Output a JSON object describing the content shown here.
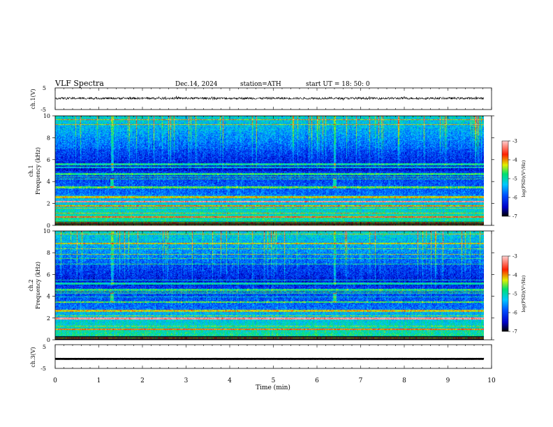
{
  "header": {
    "title": "VLF  Spectra",
    "date": "Dec.14, 2024",
    "station": "station=ATH",
    "start": "start  UT  =    18: 50: 0"
  },
  "chart_data": [
    {
      "type": "line",
      "ylabel": "ch.1(V)",
      "ylim": [
        -5,
        5
      ],
      "ytick_labels": [
        "5",
        "-5"
      ],
      "baseline": 0.2,
      "amplitude": 0.4
    },
    {
      "type": "heatmap",
      "ylabel_channel": "ch.1",
      "ylabel": "Frequency (kHz)",
      "ylim": [
        0,
        10
      ],
      "ytick_labels": [
        "0",
        "2",
        "4",
        "6",
        "8",
        "10"
      ],
      "colorbar": {
        "label": "log(PSD)(V²/Hz)",
        "range": [
          -7,
          -3
        ],
        "tick_labels": [
          "-3",
          "-4",
          "-5",
          "-6",
          "-7"
        ]
      },
      "tones_khz": [
        2.2,
        1.8,
        2.6,
        3.5,
        4.7,
        5.6,
        0.8
      ],
      "bursts_min": [
        1.3,
        6.4
      ]
    },
    {
      "type": "heatmap",
      "ylabel_channel": "ch.2",
      "ylabel": "Frequency (kHz)",
      "ylim": [
        0,
        10
      ],
      "ytick_labels": [
        "0",
        "2",
        "4",
        "6",
        "8",
        "10"
      ],
      "colorbar": {
        "label": "log(PSD)(V²/Hz)",
        "range": [
          -7,
          -3
        ],
        "tick_labels": [
          "-3",
          "-4",
          "-5",
          "-6",
          "-7"
        ]
      },
      "tones_khz": [
        2.0,
        3.5,
        4.6,
        5.2,
        2.7,
        1.0
      ],
      "bursts_min": [
        1.3,
        6.4
      ]
    },
    {
      "type": "line",
      "ylabel": "ch.3(V)",
      "ylim": [
        -5,
        5
      ],
      "ytick_labels": [
        "5",
        "-5"
      ],
      "baseline": -1.0,
      "amplitude": 0.05
    }
  ],
  "xaxis": {
    "label": "Time  (min)",
    "range": [
      0,
      10
    ],
    "tick_labels": [
      "0",
      "1",
      "2",
      "3",
      "4",
      "5",
      "6",
      "7",
      "8",
      "9",
      "10"
    ]
  },
  "colors": {
    "scale": [
      "#000000",
      "#0000c8",
      "#0050ff",
      "#00c8ff",
      "#00e070",
      "#e0f000",
      "#ff2000",
      "#ffb0b0"
    ]
  }
}
